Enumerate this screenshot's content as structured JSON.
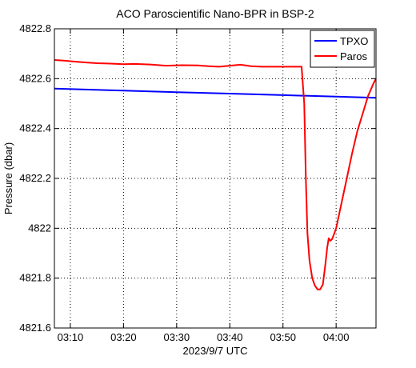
{
  "chart_data": {
    "type": "line",
    "title": "ACO Paroscientific Nano-BPR in BSP-2",
    "xlabel": "2023/9/7 UTC",
    "ylabel": "Pressure (dbar)",
    "x_unit": "minutes of hour 03:00 UTC",
    "xlim": [
      7.0,
      67.5
    ],
    "ylim": [
      4821.6,
      4822.8
    ],
    "x_ticks": [
      {
        "value": 10,
        "label": "03:10"
      },
      {
        "value": 20,
        "label": "03:20"
      },
      {
        "value": 30,
        "label": "03:30"
      },
      {
        "value": 40,
        "label": "03:40"
      },
      {
        "value": 50,
        "label": "03:50"
      },
      {
        "value": 60,
        "label": "04:00"
      }
    ],
    "y_ticks": [
      {
        "value": 4821.6,
        "label": "4821.6"
      },
      {
        "value": 4821.8,
        "label": "4821.8"
      },
      {
        "value": 4822.0,
        "label": "4822"
      },
      {
        "value": 4822.2,
        "label": "4822.2"
      },
      {
        "value": 4822.4,
        "label": "4822.4"
      },
      {
        "value": 4822.6,
        "label": "4822.6"
      },
      {
        "value": 4822.8,
        "label": "4822.8"
      }
    ],
    "grid": true,
    "legend_position": "top-right",
    "series": [
      {
        "name": "TPXO",
        "color": "#0000ff",
        "x": [
          7.0,
          20.0,
          30.0,
          40.0,
          50.0,
          60.0,
          67.5
        ],
        "y": [
          4822.56,
          4822.552,
          4822.546,
          4822.54,
          4822.534,
          4822.528,
          4822.523
        ]
      },
      {
        "name": "Paros",
        "color": "#ff0000",
        "x": [
          7.0,
          9.0,
          11.0,
          13.0,
          15.0,
          18.0,
          20.0,
          22.0,
          25.0,
          28.0,
          31.0,
          34.0,
          36.0,
          38.0,
          40.0,
          42.0,
          44.0,
          46.0,
          48.0,
          50.0,
          53.5,
          54.0,
          54.3,
          54.6,
          55.0,
          55.5,
          56.0,
          56.5,
          57.0,
          57.5,
          58.0,
          58.3,
          58.6,
          58.9,
          59.2,
          59.5,
          60.0,
          61.0,
          62.0,
          63.0,
          64.0,
          65.0,
          66.0,
          67.0,
          67.5
        ],
        "y": [
          4822.675,
          4822.672,
          4822.668,
          4822.665,
          4822.662,
          4822.66,
          4822.658,
          4822.659,
          4822.657,
          4822.652,
          4822.654,
          4822.653,
          4822.65,
          4822.648,
          4822.652,
          4822.656,
          4822.65,
          4822.648,
          4822.648,
          4822.648,
          4822.648,
          4822.5,
          4822.2,
          4821.98,
          4821.87,
          4821.8,
          4821.77,
          4821.755,
          4821.755,
          4821.775,
          4821.86,
          4821.92,
          4821.96,
          4821.95,
          4821.955,
          4821.97,
          4822.0,
          4822.1,
          4822.2,
          4822.3,
          4822.39,
          4822.46,
          4822.53,
          4822.58,
          4822.6
        ]
      }
    ]
  }
}
